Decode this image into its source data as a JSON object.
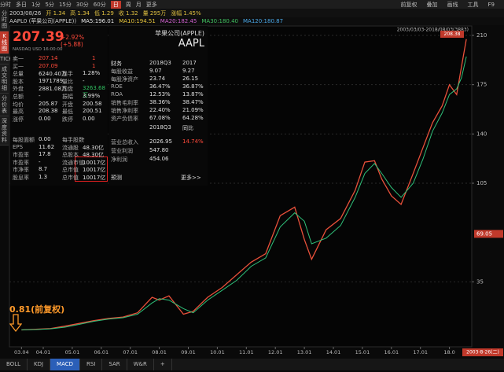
{
  "toolbar": {
    "periods": [
      "分时",
      "多日",
      "1分",
      "5分",
      "15分",
      "30分",
      "60分",
      "日",
      "周",
      "月",
      "更多"
    ],
    "tools": [
      "前复权",
      "叠加",
      "画线",
      "工具",
      "F9"
    ]
  },
  "info_bar": [
    "2003/08/26",
    "开 1.34",
    "高 1.34",
    "低 1.29",
    "收 1.32",
    "量 295万",
    "涨幅 1.45%"
  ],
  "ma_bar": {
    "symbol": "AAPL0 (苹果公司(APPLE))",
    "items": [
      {
        "text": "MA5:196.01",
        "color": "#e8e8e8"
      },
      {
        "text": "MA10:194.51",
        "color": "#e8c63a"
      },
      {
        "text": "MA20:182.45",
        "color": "#d060d0"
      },
      {
        "text": "MA30:180.40",
        "color": "#40c060"
      },
      {
        "text": "MA120:180.87",
        "color": "#4aa8e8"
      }
    ]
  },
  "side_tabs": [
    "分时图",
    "K线图",
    "TICK",
    "成交明细",
    "分价表",
    "深度资料"
  ],
  "quote": {
    "price": "207.39",
    "change": "+2.92% (+5.88)",
    "market": "NASDAQ USD 16:00:00",
    "rows": [
      [
        "卖一",
        "207.14",
        "1"
      ],
      [
        "买一",
        "207.09",
        "1"
      ],
      [
        "总量",
        "6240.40万",
        "换手",
        "1.28%"
      ],
      [
        "股本",
        "1971789",
        "量比",
        "-"
      ],
      [
        "外盘",
        "2881.08万",
        "内盘",
        "3263.68万"
      ],
      [
        "总额",
        "-",
        "振幅",
        "3.99%"
      ],
      [
        "均价",
        "205.87",
        "开盘",
        "200.58"
      ],
      [
        "最高",
        "208.38",
        "最低",
        "200.51"
      ],
      [
        "涨停",
        "0.00",
        "跌停",
        "0.00"
      ]
    ],
    "rows2": [
      [
        "每股面额",
        "0.00",
        "每手股数",
        "-"
      ],
      [
        "EPS",
        "11.62",
        "流通股",
        "48.30亿"
      ],
      [
        "市盈率",
        "17.8",
        "总股本",
        "48.30亿"
      ],
      [
        "市盈率",
        "-",
        "流通市值",
        "10017亿"
      ],
      [
        "市净率",
        "8.7",
        "总市值",
        "10017亿"
      ],
      [
        "股息率",
        "1.3",
        "总市值",
        "10017亿"
      ]
    ]
  },
  "fundamentals": {
    "name": "苹果公司(APPLE)",
    "ticker": "AAPL",
    "header": [
      "财务",
      "2018Q3",
      "2017"
    ],
    "rows": [
      [
        "每股收益",
        "9.07",
        "9.27"
      ],
      [
        "每股净资产",
        "23.74",
        "26.15"
      ],
      [
        "ROE",
        "36.47%",
        "36.87%"
      ],
      [
        "ROA",
        "12.53%",
        "13.87%"
      ],
      [
        "销售毛利率",
        "38.36%",
        "38.47%"
      ],
      [
        "销售净利率",
        "22.40%",
        "21.09%"
      ],
      [
        "资产负债率",
        "67.08%",
        "64.28%"
      ]
    ],
    "header2": [
      "2018Q3",
      "同比"
    ],
    "rows2": [
      [
        "营业总收入",
        "2026.95",
        "14.74%"
      ],
      [
        "营业利润",
        "547.80"
      ],
      [
        "净利润",
        "454.06"
      ]
    ],
    "footer": [
      "预测",
      "更多>>"
    ]
  },
  "chart": {
    "type": "line",
    "range_label": "2003/03/03-2018/08/03(3883)",
    "high_label": "208.38",
    "annotation": "0.81(前复权)",
    "cursor_price": 69.05,
    "cursor_date": "2003-8-26(二)",
    "ylim": [
      0,
      210
    ],
    "yticks": [
      35,
      105,
      140,
      175,
      210
    ],
    "grid": true,
    "xticks": [
      "03.04",
      "04.01",
      "05.01",
      "06.01",
      "07.01",
      "08.01",
      "09.01",
      "10.01",
      "11.01",
      "12.01",
      "13.01",
      "14.01",
      "15.01",
      "16.01",
      "17.01",
      "18.0"
    ],
    "x": [
      "03.04",
      "03.10",
      "04.04",
      "04.10",
      "05.04",
      "05.10",
      "06.04",
      "06.10",
      "07.04",
      "07.10",
      "08.01",
      "08.05",
      "08.11",
      "09.03",
      "09.09",
      "10.03",
      "10.09",
      "11.03",
      "11.09",
      "12.03",
      "12.09",
      "13.01",
      "13.04",
      "13.10",
      "14.04",
      "14.10",
      "15.02",
      "15.06",
      "15.09",
      "16.01",
      "16.05",
      "16.10",
      "17.02",
      "17.06",
      "17.10",
      "18.01",
      "18.04",
      "18.06",
      "18.08"
    ],
    "series": [
      {
        "name": "K",
        "color": "#e8503a",
        "values": [
          0.81,
          1.3,
          1.8,
          3.5,
          5.5,
          7.5,
          9,
          10,
          13,
          24,
          22,
          25,
          12,
          14,
          24,
          31,
          40,
          49,
          55,
          82,
          88,
          65,
          51,
          72,
          80,
          100,
          120,
          121,
          108,
          96,
          90,
          112,
          130,
          148,
          160,
          175,
          168,
          188,
          207.39
        ]
      },
      {
        "name": "MA",
        "color": "#2fc07a",
        "values": [
          0.9,
          1.1,
          1.6,
          2.8,
          4.8,
          7,
          8.5,
          9.5,
          12,
          20,
          23,
          22,
          16,
          13,
          22,
          29,
          36,
          46,
          52,
          74,
          84,
          78,
          62,
          66,
          75,
          95,
          112,
          119,
          112,
          102,
          95,
          105,
          122,
          142,
          155,
          168,
          172,
          180,
          195
        ]
      }
    ]
  },
  "bottom_tabs": [
    "BOLL",
    "KDJ",
    "MACD",
    "RSI",
    "SAR",
    "W&R",
    "+"
  ],
  "active_tab": 2
}
